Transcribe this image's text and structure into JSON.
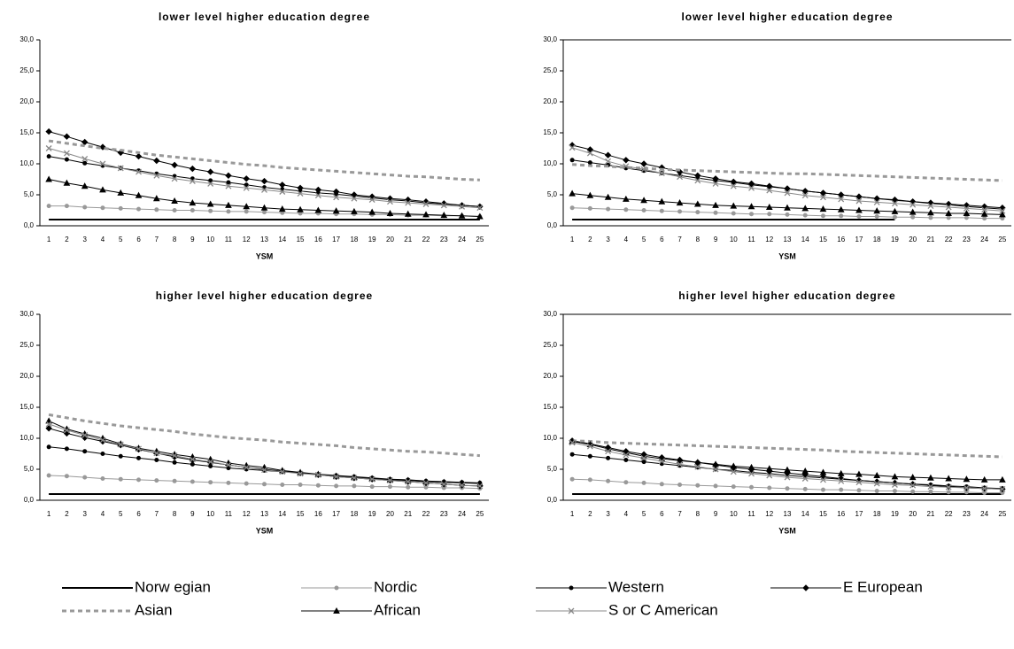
{
  "legend": [
    {
      "name": "Norw egian",
      "color": "#000000",
      "dash": false,
      "width": 2,
      "marker": "none"
    },
    {
      "name": "Nordic",
      "color": "#999999",
      "dash": false,
      "width": 1,
      "marker": "circle"
    },
    {
      "name": "Western",
      "color": "#000000",
      "dash": false,
      "width": 1,
      "marker": "circle"
    },
    {
      "name": "E European",
      "color": "#000000",
      "dash": false,
      "width": 1,
      "marker": "diamond"
    },
    {
      "name": "Asian",
      "color": "#999999",
      "dash": true,
      "width": 3,
      "marker": "none"
    },
    {
      "name": "African",
      "color": "#000000",
      "dash": false,
      "width": 1,
      "marker": "triangle"
    },
    {
      "name": "S or C American",
      "color": "#888888",
      "dash": false,
      "width": 1,
      "marker": "x"
    }
  ],
  "chart_data": [
    {
      "type": "line",
      "title": "lower level higher education degree",
      "x_label": "YSM",
      "categories": [
        1,
        2,
        3,
        4,
        5,
        6,
        7,
        8,
        9,
        10,
        11,
        12,
        13,
        14,
        15,
        16,
        17,
        18,
        19,
        20,
        21,
        22,
        23,
        24,
        25
      ],
      "ylim": [
        0,
        30
      ],
      "yticks": [
        {
          "value": 0,
          "label": "0,0"
        },
        {
          "value": 5,
          "label": "5,0"
        },
        {
          "value": 10,
          "label": "10,0"
        },
        {
          "value": 15,
          "label": "15,0"
        },
        {
          "value": 20,
          "label": "20,0"
        },
        {
          "value": 25,
          "label": "25,0"
        },
        {
          "value": 30,
          "label": "30,0"
        }
      ],
      "series": [
        {
          "values": [
            1,
            1,
            1,
            1,
            1,
            1,
            1,
            1,
            1,
            1,
            1,
            1,
            1,
            1,
            1,
            1,
            1,
            1,
            1,
            1,
            1,
            1,
            1,
            1,
            1
          ]
        },
        {
          "values": [
            3.2,
            3.2,
            3.0,
            2.9,
            2.8,
            2.7,
            2.6,
            2.5,
            2.5,
            2.4,
            2.3,
            2.3,
            2.2,
            2.1,
            2.0,
            2.0,
            1.9,
            1.9,
            1.8,
            1.8,
            1.7,
            1.7,
            1.6,
            1.6,
            1.5
          ]
        },
        {
          "values": [
            11.2,
            10.7,
            10.1,
            9.7,
            9.3,
            8.9,
            8.4,
            8.0,
            7.6,
            7.3,
            7.0,
            6.6,
            6.2,
            5.9,
            5.6,
            5.3,
            5.1,
            4.8,
            4.5,
            4.2,
            4.0,
            3.7,
            3.5,
            3.3,
            3.1
          ]
        },
        {
          "values": [
            15.2,
            14.4,
            13.5,
            12.7,
            11.8,
            11.2,
            10.5,
            9.8,
            9.2,
            8.7,
            8.1,
            7.6,
            7.2,
            6.6,
            6.1,
            5.8,
            5.5,
            5.0,
            4.7,
            4.4,
            4.2,
            3.9,
            3.6,
            3.3,
            3.1
          ]
        },
        {
          "values": [
            13.7,
            13.3,
            12.9,
            12.5,
            12.2,
            11.8,
            11.4,
            11.1,
            10.8,
            10.5,
            10.2,
            9.9,
            9.7,
            9.4,
            9.2,
            9.0,
            8.8,
            8.6,
            8.4,
            8.2,
            8.0,
            7.9,
            7.7,
            7.5,
            7.4
          ]
        },
        {
          "values": [
            7.5,
            6.9,
            6.4,
            5.8,
            5.3,
            4.9,
            4.4,
            4.0,
            3.7,
            3.5,
            3.3,
            3.1,
            2.9,
            2.7,
            2.6,
            2.5,
            2.4,
            2.3,
            2.2,
            2.0,
            1.9,
            1.8,
            1.7,
            1.6,
            1.5
          ]
        },
        {
          "values": [
            12.5,
            11.7,
            10.8,
            10.0,
            9.3,
            8.7,
            8.1,
            7.6,
            7.2,
            6.8,
            6.4,
            6.1,
            5.8,
            5.5,
            5.2,
            4.9,
            4.6,
            4.4,
            4.2,
            3.9,
            3.7,
            3.5,
            3.3,
            3.1,
            2.9
          ]
        }
      ]
    },
    {
      "type": "line",
      "title": "lower level higher education degree",
      "x_label": "YSM",
      "categories": [
        1,
        2,
        3,
        4,
        5,
        6,
        7,
        8,
        9,
        10,
        11,
        12,
        13,
        14,
        15,
        16,
        17,
        18,
        19,
        20,
        21,
        22,
        23,
        24,
        25
      ],
      "ylim": [
        0,
        30
      ],
      "yticks": [
        {
          "value": 0,
          "label": "0,0"
        },
        {
          "value": 5,
          "label": "5,0"
        },
        {
          "value": 10,
          "label": "10,0"
        },
        {
          "value": 15,
          "label": "15,0"
        },
        {
          "value": 20,
          "label": "20,0"
        },
        {
          "value": 25,
          "label": "25,0"
        },
        {
          "value": 30,
          "label": "30,0"
        }
      ],
      "series": [
        {
          "values": [
            1,
            1,
            1,
            1,
            1,
            1,
            1,
            1,
            1,
            1,
            1,
            1,
            1,
            1,
            1,
            1,
            1,
            1,
            1,
            null,
            null,
            null,
            null,
            null,
            null
          ]
        },
        {
          "values": [
            2.9,
            2.8,
            2.7,
            2.6,
            2.5,
            2.4,
            2.3,
            2.2,
            2.1,
            2.0,
            1.9,
            1.9,
            1.8,
            1.7,
            1.6,
            1.6,
            1.5,
            1.5,
            1.4,
            1.4,
            1.3,
            1.3,
            1.3,
            1.2,
            1.2
          ]
        },
        {
          "values": [
            10.6,
            10.2,
            9.8,
            9.3,
            8.9,
            8.5,
            8.1,
            7.7,
            7.3,
            7.0,
            6.6,
            6.3,
            6.0,
            5.6,
            5.3,
            5.0,
            4.7,
            4.4,
            4.1,
            3.9,
            3.6,
            3.4,
            3.1,
            2.9,
            2.7
          ]
        },
        {
          "values": [
            13.0,
            12.3,
            11.4,
            10.6,
            10.0,
            9.4,
            8.7,
            8.1,
            7.6,
            7.1,
            6.8,
            6.4,
            6.0,
            5.6,
            5.3,
            5.0,
            4.7,
            4.4,
            4.2,
            3.9,
            3.7,
            3.5,
            3.3,
            3.1,
            2.9
          ]
        },
        {
          "values": [
            9.9,
            9.7,
            9.6,
            9.4,
            9.3,
            9.1,
            9.0,
            8.9,
            8.8,
            8.7,
            8.6,
            8.5,
            8.4,
            8.4,
            8.3,
            8.2,
            8.1,
            8.0,
            7.9,
            7.8,
            7.7,
            7.6,
            7.5,
            7.4,
            7.3
          ]
        },
        {
          "values": [
            5.2,
            4.9,
            4.6,
            4.3,
            4.1,
            3.9,
            3.7,
            3.5,
            3.3,
            3.2,
            3.1,
            3.0,
            2.9,
            2.8,
            2.7,
            2.6,
            2.5,
            2.4,
            2.3,
            2.2,
            2.1,
            2.0,
            2.0,
            1.9,
            1.8
          ]
        },
        {
          "values": [
            12.6,
            11.7,
            10.4,
            9.6,
            9.1,
            8.5,
            7.9,
            7.3,
            6.8,
            6.4,
            6.1,
            5.7,
            5.3,
            4.9,
            4.6,
            4.3,
            4.0,
            3.8,
            3.6,
            3.4,
            3.2,
            3.0,
            2.8,
            2.6,
            2.4
          ]
        }
      ]
    },
    {
      "type": "line",
      "title": "higher level higher education degree",
      "x_label": "YSM",
      "categories": [
        1,
        2,
        3,
        4,
        5,
        6,
        7,
        8,
        9,
        10,
        11,
        12,
        13,
        14,
        15,
        16,
        17,
        18,
        19,
        20,
        21,
        22,
        23,
        24,
        25
      ],
      "ylim": [
        0,
        30
      ],
      "yticks": [
        {
          "value": 0,
          "label": "0,0"
        },
        {
          "value": 5,
          "label": "5,0"
        },
        {
          "value": 10,
          "label": "10,0"
        },
        {
          "value": 15,
          "label": "15,0"
        },
        {
          "value": 20,
          "label": "20,0"
        },
        {
          "value": 25,
          "label": "25,0"
        },
        {
          "value": 30,
          "label": "30,0"
        }
      ],
      "series": [
        {
          "values": [
            1,
            1,
            1,
            1,
            1,
            1,
            1,
            1,
            1,
            1,
            1,
            1,
            1,
            1,
            1,
            1,
            1,
            1,
            1,
            1,
            1,
            1,
            1,
            1,
            1
          ]
        },
        {
          "values": [
            4.0,
            3.9,
            3.7,
            3.5,
            3.4,
            3.3,
            3.2,
            3.1,
            3.0,
            2.9,
            2.8,
            2.7,
            2.6,
            2.5,
            2.5,
            2.4,
            2.3,
            2.3,
            2.2,
            2.2,
            2.1,
            2.1,
            2.0,
            2.0,
            1.9
          ]
        },
        {
          "values": [
            8.6,
            8.3,
            7.9,
            7.5,
            7.1,
            6.8,
            6.5,
            6.1,
            5.8,
            5.5,
            5.2,
            5.0,
            4.8,
            4.6,
            4.4,
            4.2,
            4.0,
            3.8,
            3.6,
            3.4,
            3.3,
            3.1,
            3.0,
            2.9,
            2.8
          ]
        },
        {
          "values": [
            11.6,
            10.8,
            10.1,
            9.5,
            8.9,
            8.2,
            7.6,
            7.0,
            6.5,
            6.1,
            5.7,
            5.3,
            5.0,
            4.7,
            4.4,
            4.1,
            3.8,
            3.6,
            3.4,
            3.2,
            3.0,
            2.8,
            2.6,
            2.4,
            2.3
          ]
        },
        {
          "values": [
            13.8,
            13.3,
            12.8,
            12.4,
            12.0,
            11.7,
            11.4,
            11.1,
            10.7,
            10.4,
            10.1,
            9.9,
            9.7,
            9.4,
            9.2,
            9.0,
            8.8,
            8.5,
            8.3,
            8.1,
            7.9,
            7.8,
            7.6,
            7.4,
            7.2
          ]
        },
        {
          "values": [
            12.8,
            11.5,
            10.7,
            10.0,
            9.1,
            8.4,
            7.9,
            7.4,
            7.0,
            6.6,
            6.0,
            5.6,
            5.3,
            4.8,
            4.5,
            4.2,
            3.9,
            3.7,
            3.5,
            3.3,
            3.2,
            3.0,
            2.9,
            2.8,
            2.7
          ]
        },
        {
          "values": [
            12.3,
            11.3,
            10.5,
            9.7,
            9.0,
            8.3,
            7.6,
            7.2,
            6.6,
            6.2,
            5.7,
            5.3,
            4.9,
            4.6,
            4.3,
            4.1,
            3.8,
            3.6,
            3.4,
            3.2,
            3.0,
            2.8,
            2.6,
            2.4,
            2.3
          ]
        }
      ]
    },
    {
      "type": "line",
      "title": "higher level higher education degree",
      "x_label": "YSM",
      "categories": [
        1,
        2,
        3,
        4,
        5,
        6,
        7,
        8,
        9,
        10,
        11,
        12,
        13,
        14,
        15,
        16,
        17,
        18,
        19,
        20,
        21,
        22,
        23,
        24,
        25
      ],
      "ylim": [
        0,
        30
      ],
      "yticks": [
        {
          "value": 0,
          "label": "0,0"
        },
        {
          "value": 5,
          "label": "5,0"
        },
        {
          "value": 10,
          "label": "10,0"
        },
        {
          "value": 15,
          "label": "15,0"
        },
        {
          "value": 20,
          "label": "20,0"
        },
        {
          "value": 25,
          "label": "25,0"
        },
        {
          "value": 30,
          "label": "30,0"
        }
      ],
      "series": [
        {
          "values": [
            1,
            1,
            1,
            1,
            1,
            1,
            1,
            1,
            1,
            1,
            1,
            1,
            1,
            1,
            1,
            1,
            1,
            1,
            1,
            1,
            1,
            1,
            1,
            1,
            1
          ]
        },
        {
          "values": [
            3.4,
            3.3,
            3.1,
            2.9,
            2.8,
            2.6,
            2.5,
            2.4,
            2.3,
            2.2,
            2.1,
            2.0,
            1.9,
            1.8,
            1.7,
            1.7,
            1.6,
            1.5,
            1.5,
            1.4,
            1.4,
            1.3,
            1.3,
            1.2,
            1.2
          ]
        },
        {
          "values": [
            7.4,
            7.1,
            6.8,
            6.5,
            6.2,
            5.9,
            5.6,
            5.3,
            5.0,
            4.8,
            4.5,
            4.3,
            4.0,
            3.8,
            3.6,
            3.4,
            3.2,
            3.0,
            2.8,
            2.6,
            2.5,
            2.3,
            2.2,
            2.0,
            1.9
          ]
        },
        {
          "values": [
            9.6,
            9.1,
            8.5,
            7.9,
            7.4,
            6.9,
            6.5,
            6.1,
            5.7,
            5.3,
            5.0,
            4.7,
            4.4,
            4.1,
            3.8,
            3.5,
            3.2,
            3.0,
            2.8,
            2.6,
            2.4,
            2.2,
            2.0,
            1.9,
            1.8
          ]
        },
        {
          "values": [
            9.6,
            9.5,
            9.3,
            9.2,
            9.1,
            9.0,
            8.9,
            8.8,
            8.7,
            8.6,
            8.5,
            8.4,
            8.3,
            8.2,
            8.1,
            7.9,
            7.8,
            7.7,
            7.6,
            7.5,
            7.4,
            7.3,
            7.2,
            7.1,
            7.0
          ]
        },
        {
          "values": [
            9.5,
            9.0,
            8.3,
            7.7,
            7.1,
            6.7,
            6.4,
            6.1,
            5.8,
            5.5,
            5.3,
            5.1,
            4.9,
            4.7,
            4.5,
            4.3,
            4.2,
            4.0,
            3.8,
            3.7,
            3.6,
            3.5,
            3.4,
            3.3,
            3.3
          ]
        },
        {
          "values": [
            9.3,
            8.7,
            7.9,
            7.3,
            6.8,
            6.3,
            5.8,
            5.4,
            5.0,
            4.6,
            4.3,
            4.0,
            3.7,
            3.5,
            3.3,
            3.1,
            2.9,
            2.7,
            2.5,
            2.4,
            2.2,
            2.1,
            2.0,
            1.9,
            1.8
          ]
        }
      ]
    }
  ]
}
